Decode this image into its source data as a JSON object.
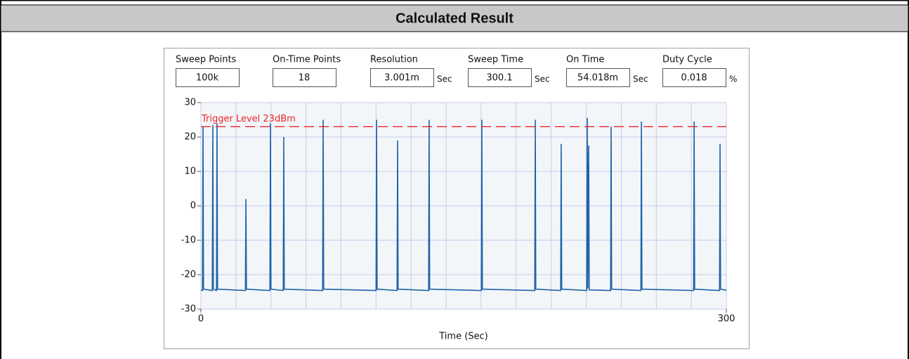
{
  "header": {
    "title": "Calculated Result"
  },
  "fields": [
    {
      "label": "Sweep Points",
      "value": "100k"
    },
    {
      "label": "On-Time Points",
      "value": "18"
    },
    {
      "label": "Resolution",
      "value": "3.001m",
      "unit": "Sec"
    },
    {
      "label": "Sweep Time",
      "value": "300.1",
      "unit": "Sec"
    },
    {
      "label": "On Time",
      "value": "54.018m",
      "unit": "Sec"
    },
    {
      "label": "Duty Cycle",
      "value": "0.018",
      "unit": "%"
    }
  ],
  "chart_data": {
    "type": "line",
    "xlabel": "Time (Sec)",
    "xlim": [
      0,
      300
    ],
    "xticks": [
      0,
      300
    ],
    "xgrid": [
      0,
      20,
      40,
      60,
      80,
      100,
      120,
      140,
      160,
      180,
      200,
      220,
      240,
      260,
      280,
      300
    ],
    "ylim": [
      -30,
      30
    ],
    "yticks": [
      30,
      20,
      10,
      0,
      -10,
      -20,
      -30
    ],
    "grid": true,
    "trigger": {
      "label": "Trigger Level 23dBm",
      "value": 23,
      "color": "#e8262b"
    },
    "series": [
      {
        "color": "#1f64a8",
        "x": [
          0,
          0.9,
          1.2,
          1.5,
          6.5,
          6.8,
          7.1,
          8.9,
          9.2,
          9.5,
          25.4,
          25.7,
          26.0,
          39.4,
          39.7,
          40.0,
          47.0,
          47.3,
          47.6,
          69.5,
          69.8,
          70.1,
          100.0,
          100.3,
          100.6,
          112.0,
          112.3,
          112.6,
          130.0,
          130.3,
          130.6,
          160.1,
          160.4,
          160.7,
          190.6,
          190.9,
          191.2,
          205.4,
          205.7,
          206.0,
          220.3,
          220.6,
          220.9,
          221.4,
          221.7,
          233.9,
          234.2,
          234.5,
          251.2,
          251.5,
          251.8,
          281.3,
          281.6,
          281.9,
          296.1,
          296.4,
          296.7,
          300
        ],
        "values": [
          -24.5,
          -24.6,
          23,
          -24.2,
          -24.6,
          23.5,
          -24.2,
          -24.6,
          24,
          -24.2,
          -24.6,
          2,
          -24.2,
          -24.6,
          24,
          -24.2,
          -24.6,
          20,
          -24.2,
          -24.6,
          25,
          -24.2,
          -24.6,
          25,
          -24.2,
          -24.6,
          19,
          -24.2,
          -24.6,
          25,
          -24.2,
          -24.6,
          25,
          -24.2,
          -24.6,
          25,
          -24.2,
          -24.6,
          18,
          -24.2,
          -24.6,
          25.5,
          -24,
          17.5,
          -24.4,
          -24.6,
          23,
          -24.2,
          -24.6,
          24.5,
          -24.2,
          -24.6,
          24.5,
          -24.2,
          -24.6,
          18,
          -24.2,
          -24.5
        ]
      }
    ]
  }
}
